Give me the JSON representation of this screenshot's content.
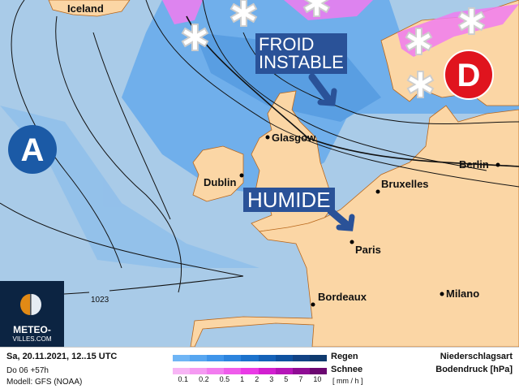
{
  "map": {
    "cities": [
      {
        "name": "Iceland",
        "dot": false
      },
      {
        "name": "Glasgow",
        "dot": true
      },
      {
        "name": "Dublin",
        "dot": true
      },
      {
        "name": "Bruxelles",
        "dot": true
      },
      {
        "name": "Berlin",
        "dot": true
      },
      {
        "name": "Paris",
        "dot": true
      },
      {
        "name": "Bordeaux",
        "dot": true
      },
      {
        "name": "Milano",
        "dot": true
      }
    ],
    "high_pressure_label": "A",
    "low_pressure_label": "D",
    "isobar_label": "1023",
    "annotations": {
      "cold": "FROID\nINSTABLE",
      "cold_line1": "FROID",
      "cold_line2": "INSTABLE",
      "humid": "HUMIDE"
    },
    "colors": {
      "ocean": "#a9cbe8",
      "land": "#fbd6a5",
      "rain": "#5ea6ec",
      "snow": "#f07cf0",
      "banner": "#2a5298",
      "high": "#1b5aa6",
      "low": "#e0141e"
    }
  },
  "logo": {
    "line1": "METEO-",
    "line2": "VILLES.COM"
  },
  "legend": {
    "datetime": "Sa, 20.11.2021, 12..15 UTC",
    "run": "Do 06 +57h",
    "model": "Modell: GFS (NOAA)",
    "rain_label": "Regen",
    "snow_label": "Schnee",
    "unit": "[ mm / h ]",
    "ticks": [
      "0.1",
      "0.2",
      "0.5",
      "1",
      "2",
      "3",
      "5",
      "7",
      "10"
    ],
    "rain_colors": [
      "#6fb5f5",
      "#57a6f0",
      "#3f95ea",
      "#2c84de",
      "#1c72cc",
      "#1562b8",
      "#0f52a0",
      "#124385",
      "#0f3a6e"
    ],
    "snow_colors": [
      "#f7b5f5",
      "#f59af2",
      "#f27cef",
      "#ef5ceb",
      "#ea3ae6",
      "#d21fd0",
      "#b515b8",
      "#8f0c94",
      "#6b0670"
    ],
    "title1": "Niederschlagsart",
    "title2": "Bodendruck [hPa]"
  }
}
